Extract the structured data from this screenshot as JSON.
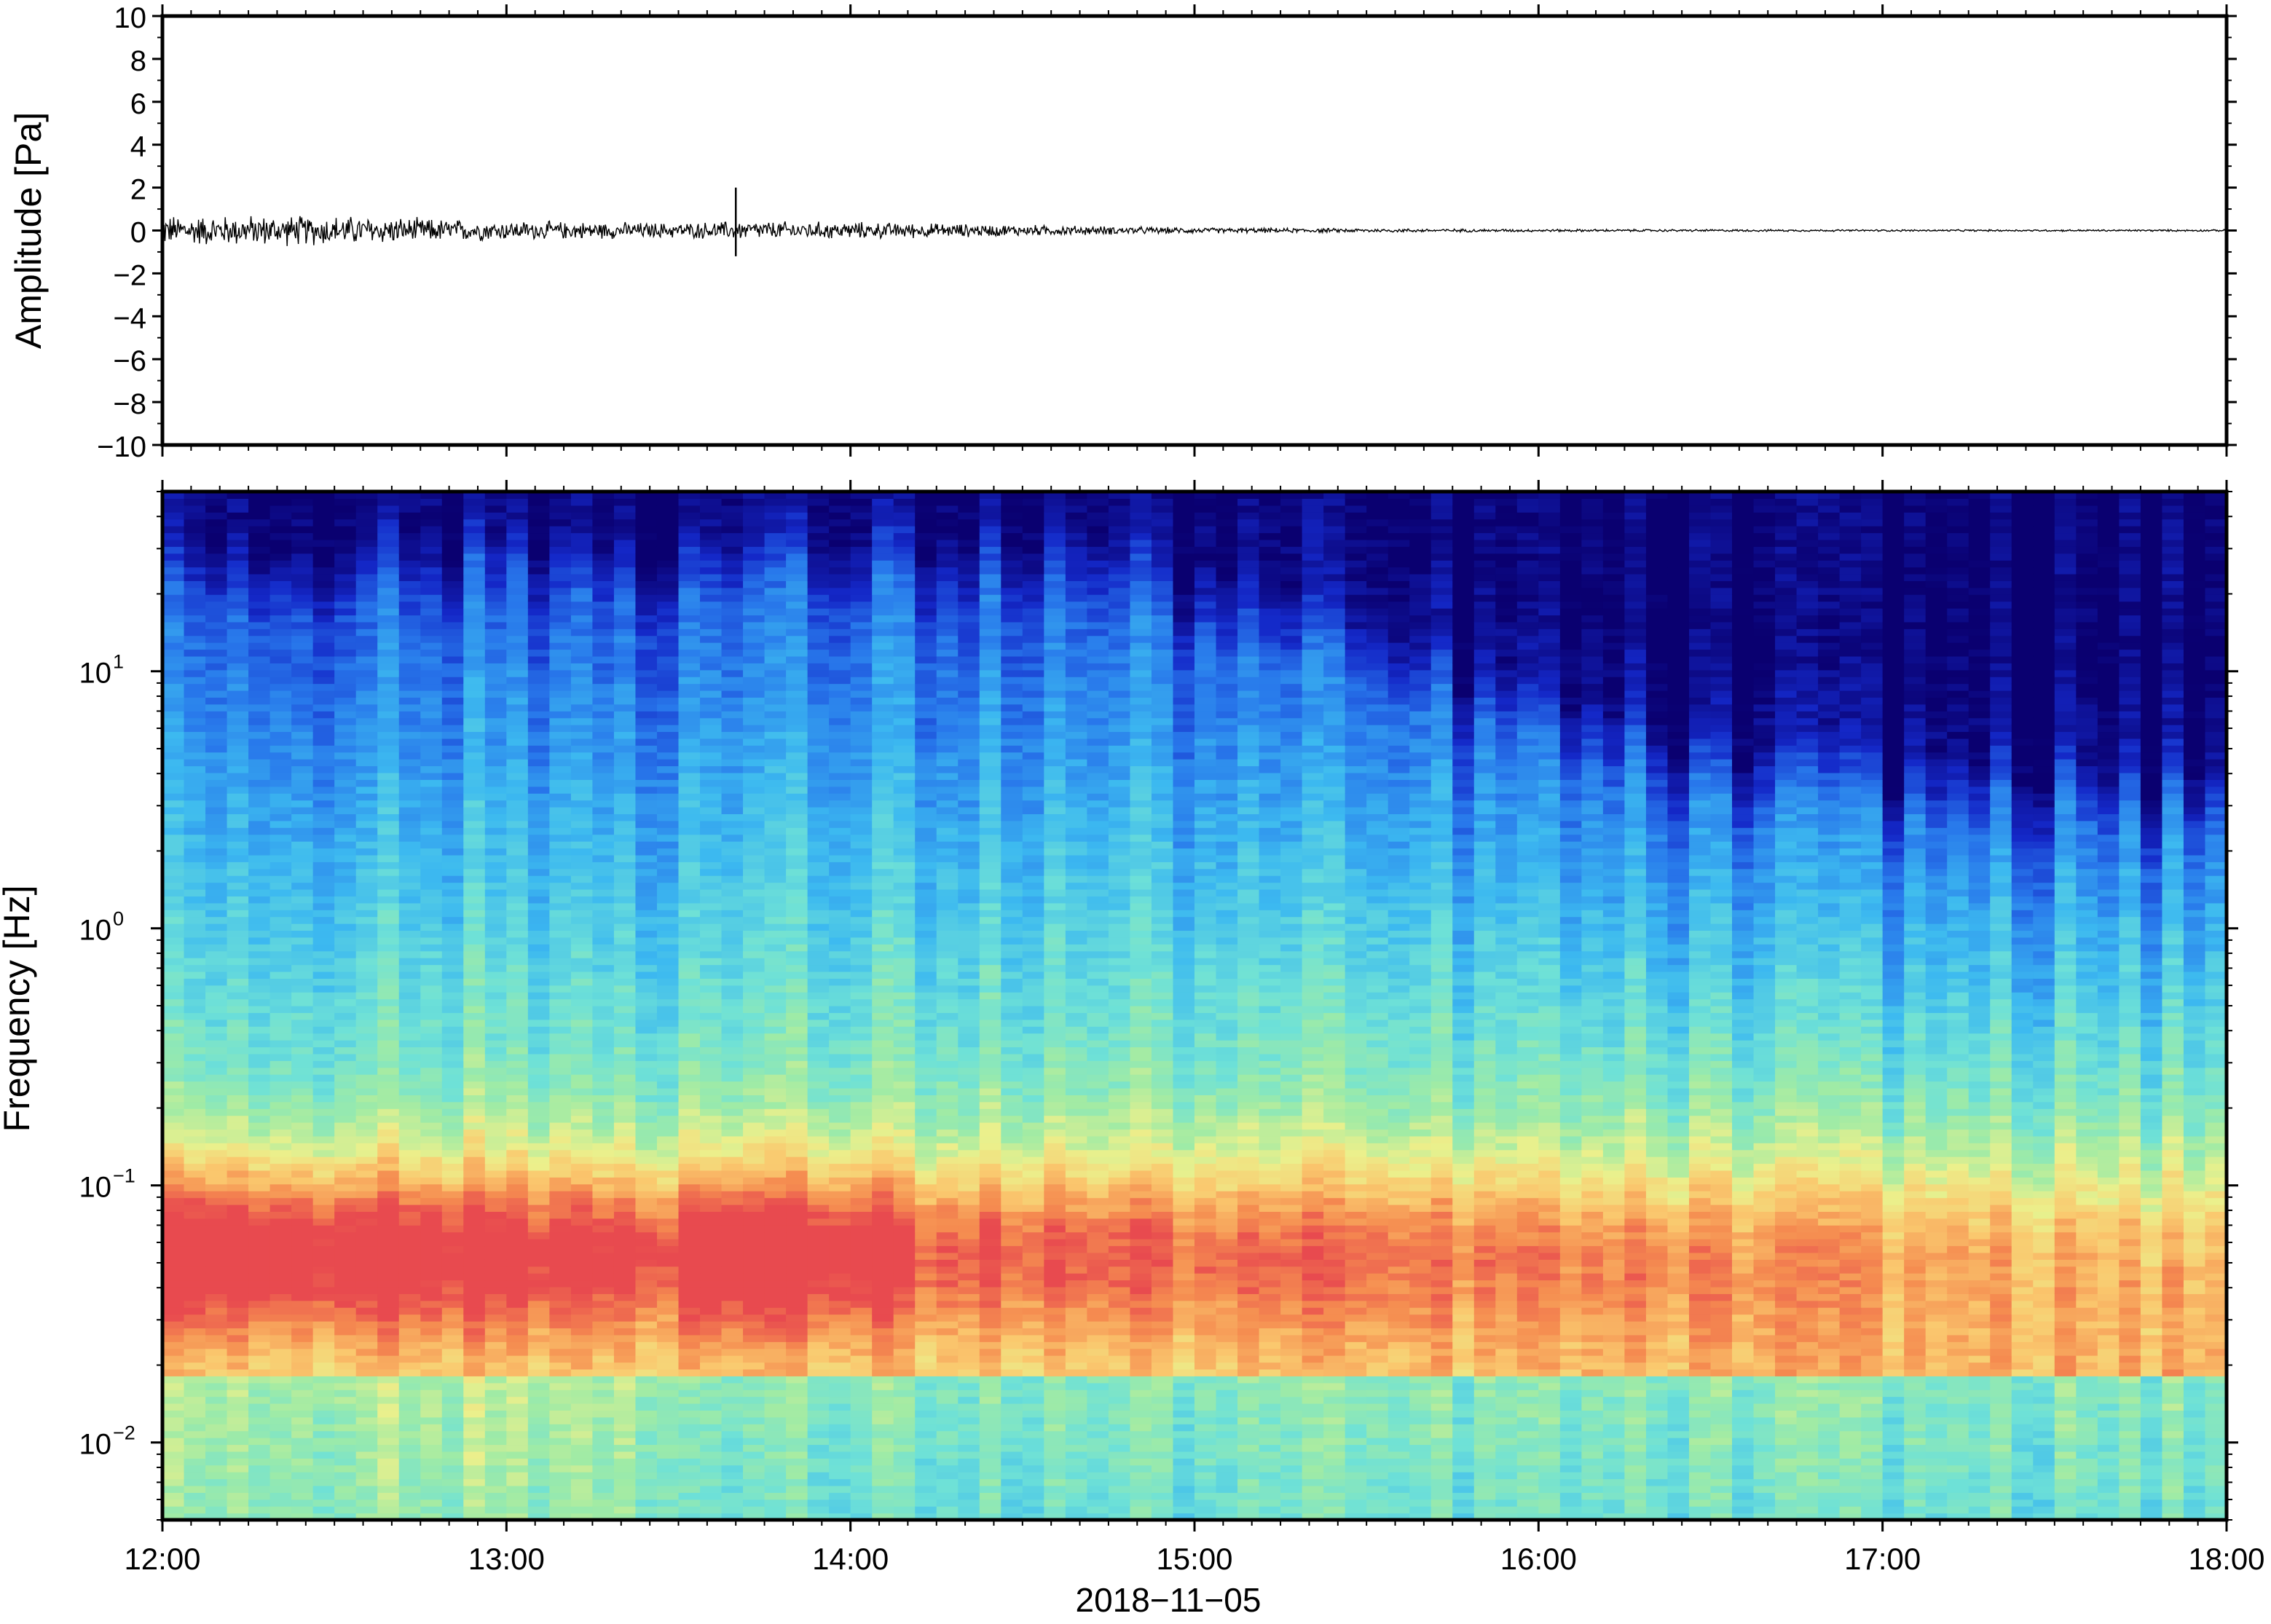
{
  "chart_data": [
    {
      "type": "line",
      "ylabel": "Amplitude [Pa]",
      "ylim": [
        -10,
        10
      ],
      "yticks": [
        10,
        8,
        6,
        4,
        2,
        0,
        -2,
        -4,
        -6,
        -8,
        -10
      ],
      "ytick_labels": [
        "10",
        "8",
        "6",
        "4",
        "2",
        "0",
        "−2",
        "−4",
        "−6",
        "−8",
        "−10"
      ],
      "x_range": [
        "12:00",
        "18:00"
      ],
      "envelope_x": [
        "12:00",
        "12:30",
        "13:00",
        "13:30",
        "13:40",
        "14:00",
        "14:30",
        "15:00",
        "15:30",
        "16:00",
        "17:00",
        "18:00"
      ],
      "envelope_y": [
        0.8,
        0.8,
        0.5,
        0.4,
        0.5,
        0.45,
        0.3,
        0.15,
        0.1,
        0.07,
        0.05,
        0.05
      ],
      "spike": {
        "time": "13:40",
        "max": 2.0,
        "min": -1.2
      },
      "grid": false,
      "legend": "none"
    },
    {
      "type": "heatmap",
      "ylabel": "Frequency [Hz]",
      "yscale": "log",
      "ylim": [
        0.005,
        50
      ],
      "yticks": [
        0.01,
        0.1,
        1,
        10
      ],
      "ytick_labels": [
        {
          "base": "10",
          "exp": "−2"
        },
        {
          "base": "10",
          "exp": "−1"
        },
        {
          "base": "10",
          "exp": "0"
        },
        {
          "base": "10",
          "exp": "1"
        }
      ],
      "x_range": [
        "12:00",
        "18:00"
      ],
      "xticks": [
        "12:00",
        "13:00",
        "14:00",
        "15:00",
        "16:00",
        "17:00",
        "18:00"
      ],
      "xlabel": "2018−11−05",
      "colormap": "jet-like",
      "colors": {
        "low": "#0a0070",
        "mid": "#7fe7b9",
        "high": "#e84a4f"
      },
      "grid": false,
      "legend": "none"
    }
  ]
}
